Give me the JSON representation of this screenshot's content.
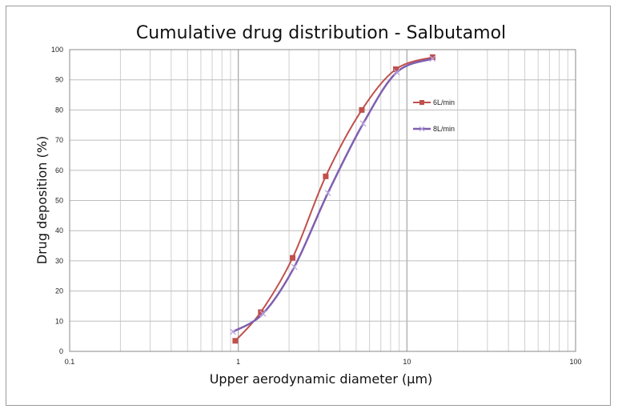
{
  "chart_data": {
    "type": "line",
    "title": "Cumulative drug distribution - Salbutamol",
    "xlabel": "Upper aerodynamic diameter (µm)",
    "ylabel": "Drug deposition (%)",
    "xscale": "log",
    "xlim": [
      0.1,
      100
    ],
    "ylim": [
      0,
      100
    ],
    "x_tick_labels": [
      "0.1",
      "1",
      "10",
      "100"
    ],
    "y_tick_labels": [
      "0",
      "10",
      "20",
      "30",
      "40",
      "50",
      "60",
      "70",
      "80",
      "90",
      "100"
    ],
    "grid": true,
    "legend_position": "right, inside plot",
    "series": [
      {
        "name": "6L/min",
        "color": "#c0504d",
        "marker": "square",
        "x": [
          0.96,
          1.36,
          2.1,
          3.3,
          5.4,
          8.6,
          14.2
        ],
        "y": [
          3.5,
          13,
          31,
          58,
          80,
          93.5,
          97.5
        ]
      },
      {
        "name": "8L/min",
        "color": "#7f5fb0",
        "marker": "x",
        "x": [
          0.93,
          1.4,
          2.15,
          3.4,
          5.5,
          8.7,
          14.2
        ],
        "y": [
          6.5,
          12.5,
          28,
          52.5,
          75.5,
          92.5,
          97
        ]
      }
    ]
  }
}
